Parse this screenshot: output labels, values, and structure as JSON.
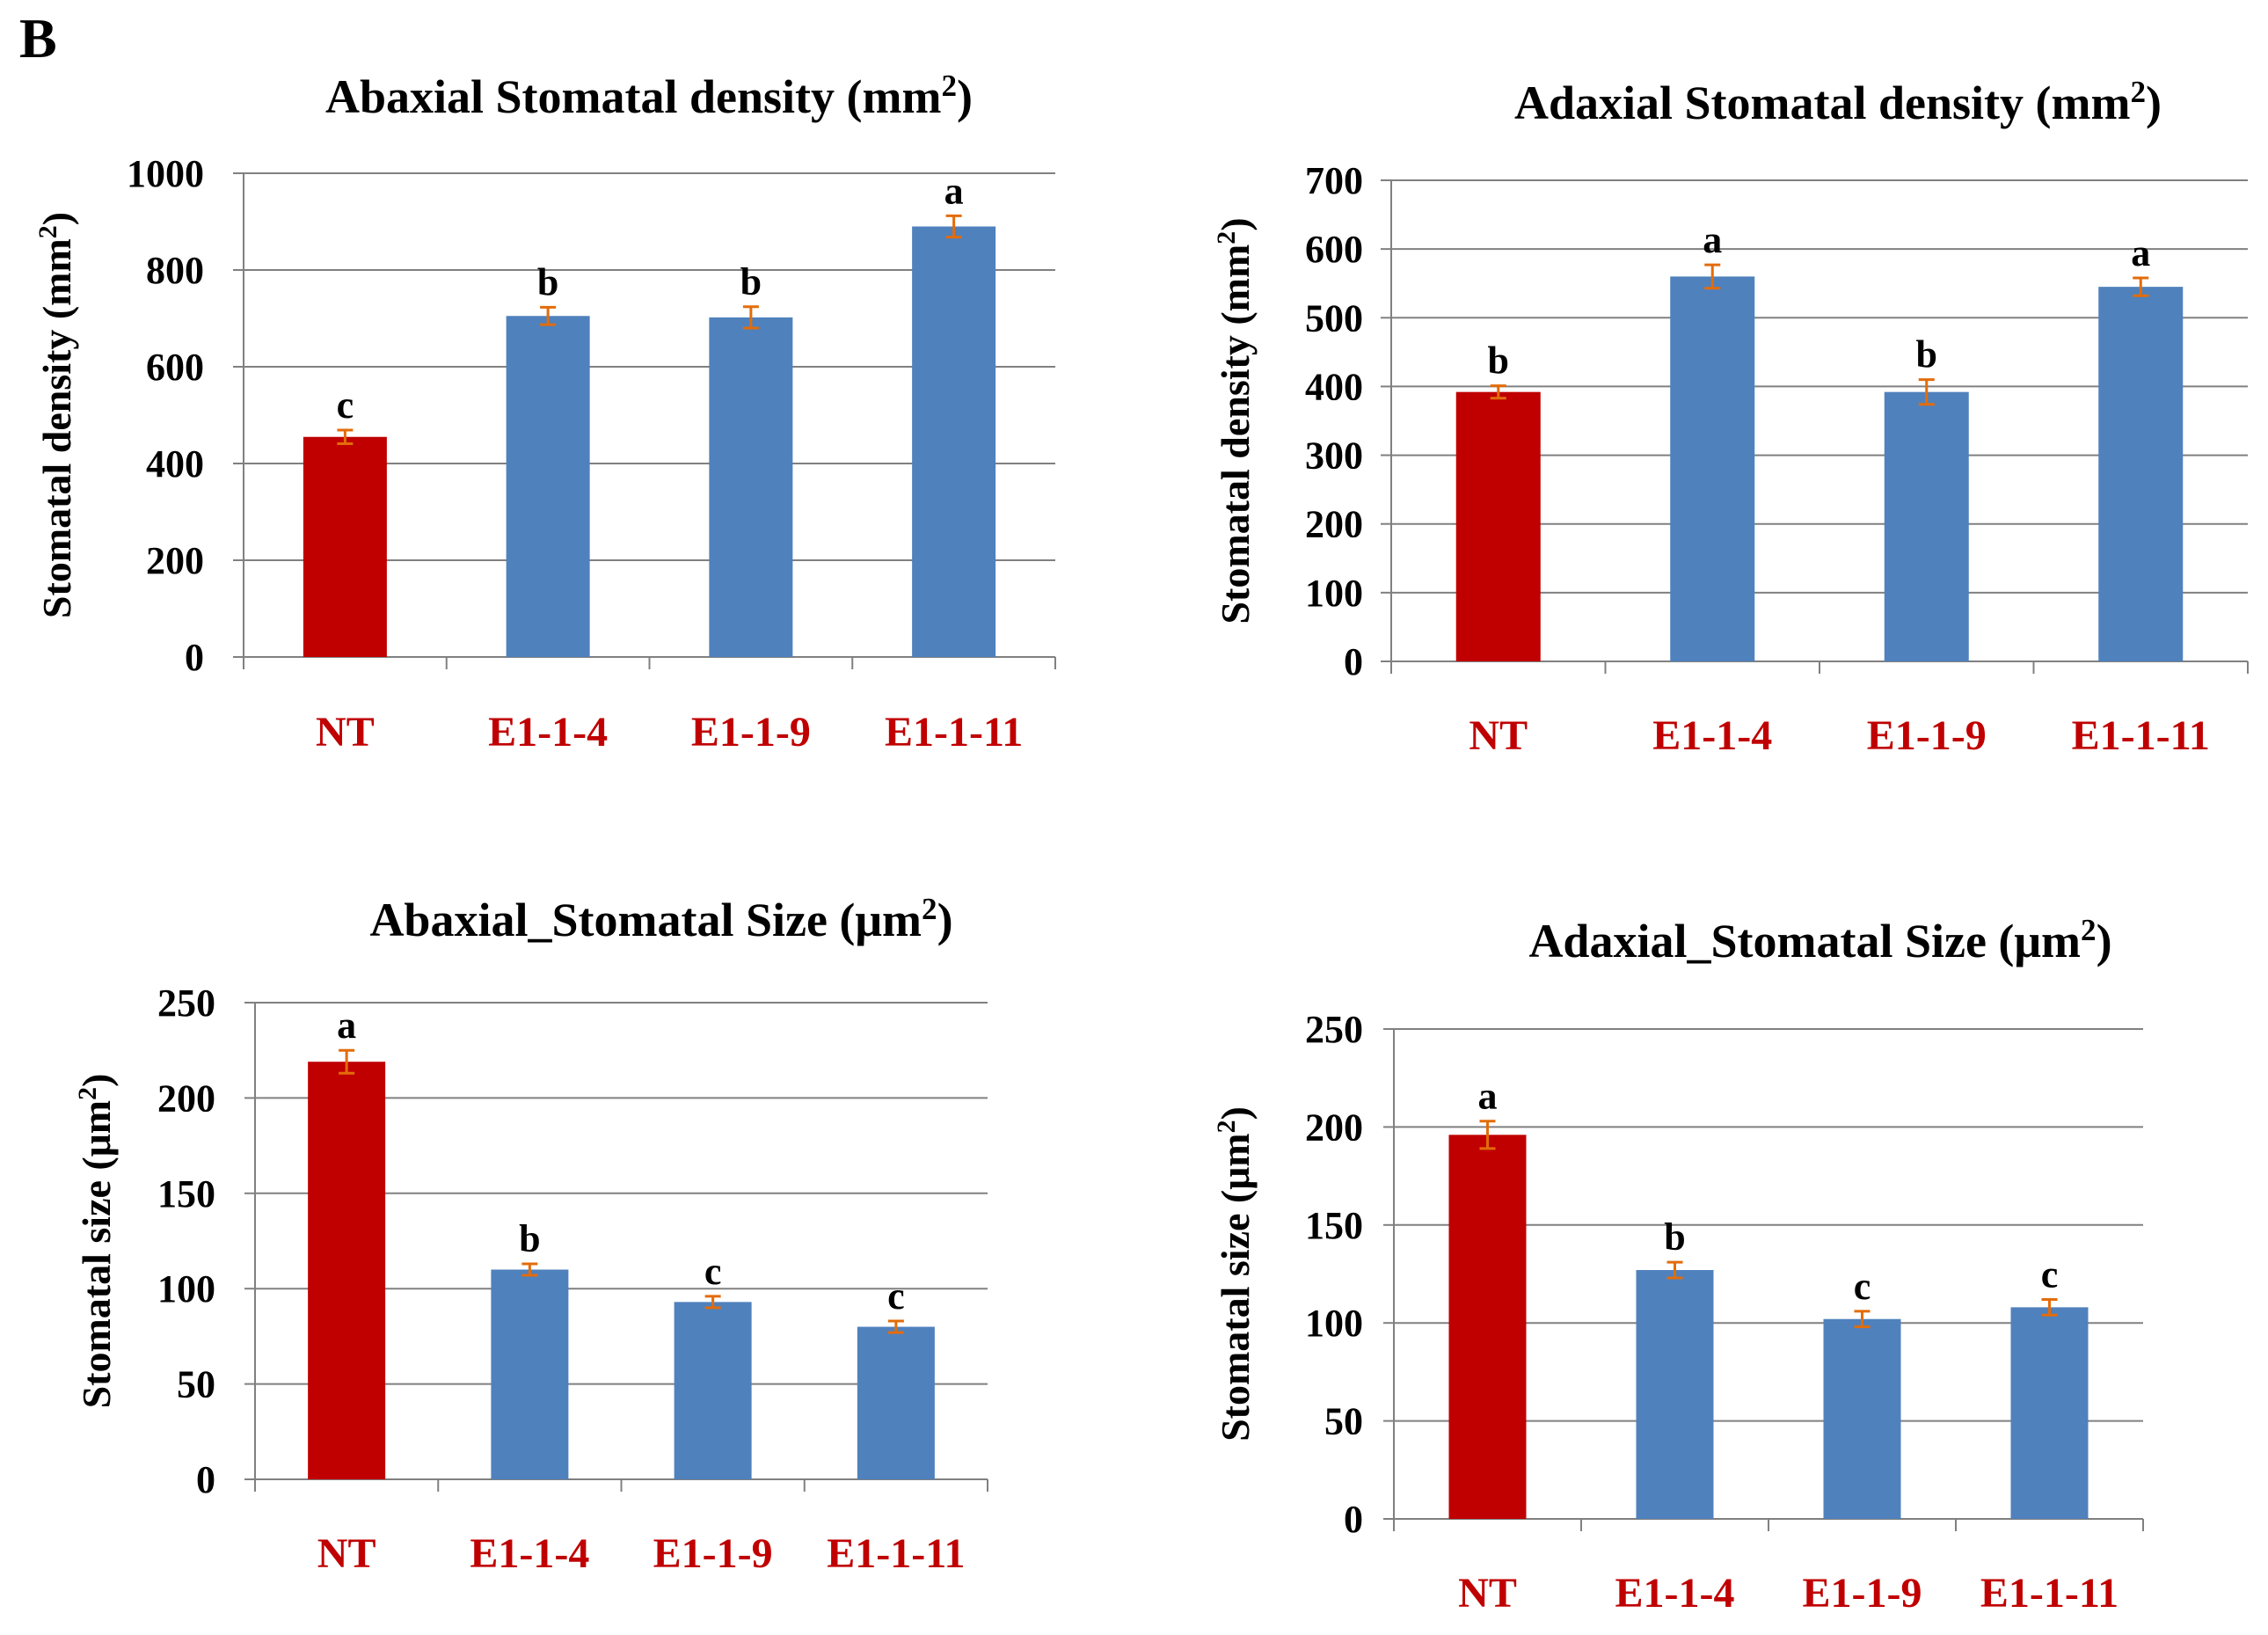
{
  "panel_label": "B",
  "colors": {
    "control": "#C00000",
    "treatment": "#4F81BD",
    "error_bar": "#E36C0A",
    "grid": "#808080",
    "category_label": "#C00000",
    "text": "#000000"
  },
  "chart_data": [
    {
      "type": "bar",
      "title": "Abaxial  Stomatal  density  (mm",
      "title_superscript": "2",
      "title_suffix": ")",
      "ylabel": "Stomatal density (mm",
      "ylabel_superscript": "2",
      "ylabel_suffix": ")",
      "categories": [
        "NT",
        "E1-1-4",
        "E1-1-9",
        "E1-1-11"
      ],
      "values": [
        455,
        705,
        702,
        890
      ],
      "errors": [
        14,
        18,
        22,
        22
      ],
      "letters": [
        "c",
        "b",
        "b",
        "a"
      ],
      "ylim": [
        0,
        1000
      ],
      "yticks": [
        0,
        200,
        400,
        600,
        800,
        1000
      ],
      "grid": true
    },
    {
      "type": "bar",
      "title": "Adaxial  Stomatal  density  (mm",
      "title_superscript": "2",
      "title_suffix": ")",
      "ylabel": "Stomatal density (mm",
      "ylabel_superscript": "2",
      "ylabel_suffix": ")",
      "categories": [
        "NT",
        "E1-1-4",
        "E1-1-9",
        "E1-1-11"
      ],
      "values": [
        392,
        560,
        392,
        545
      ],
      "errors": [
        9,
        17,
        18,
        13
      ],
      "letters": [
        "b",
        "a",
        "b",
        "a"
      ],
      "ylim": [
        0,
        700
      ],
      "yticks": [
        0,
        100,
        200,
        300,
        400,
        500,
        600,
        700
      ],
      "grid": true
    },
    {
      "type": "bar",
      "title": "Abaxial_Stomatal  Size  (μm",
      "title_superscript": "2",
      "title_suffix": ")",
      "ylabel": "Stomatal size (μm",
      "ylabel_superscript": "2",
      "ylabel_suffix": ")",
      "categories": [
        "NT",
        "E1-1-4",
        "E1-1-9",
        "E1-1-11"
      ],
      "values": [
        219,
        110,
        93,
        80
      ],
      "errors": [
        6,
        3,
        3,
        3
      ],
      "letters": [
        "a",
        "b",
        "c",
        "c"
      ],
      "ylim": [
        0,
        250
      ],
      "yticks": [
        0,
        50,
        100,
        150,
        200,
        250
      ],
      "grid": true
    },
    {
      "type": "bar",
      "title": "Adaxial_Stomatal  Size  (μm",
      "title_superscript": "2",
      "title_suffix": ")",
      "ylabel": "Stomatal size (μm",
      "ylabel_superscript": "2",
      "ylabel_suffix": ")",
      "categories": [
        "NT",
        "E1-1-4",
        "E1-1-9",
        "E1-1-11"
      ],
      "values": [
        196,
        127,
        102,
        108
      ],
      "errors": [
        7,
        4,
        4,
        4
      ],
      "letters": [
        "a",
        "b",
        "c",
        "c"
      ],
      "ylim": [
        0,
        250
      ],
      "yticks": [
        0,
        50,
        100,
        150,
        200,
        250
      ],
      "grid": true
    }
  ]
}
